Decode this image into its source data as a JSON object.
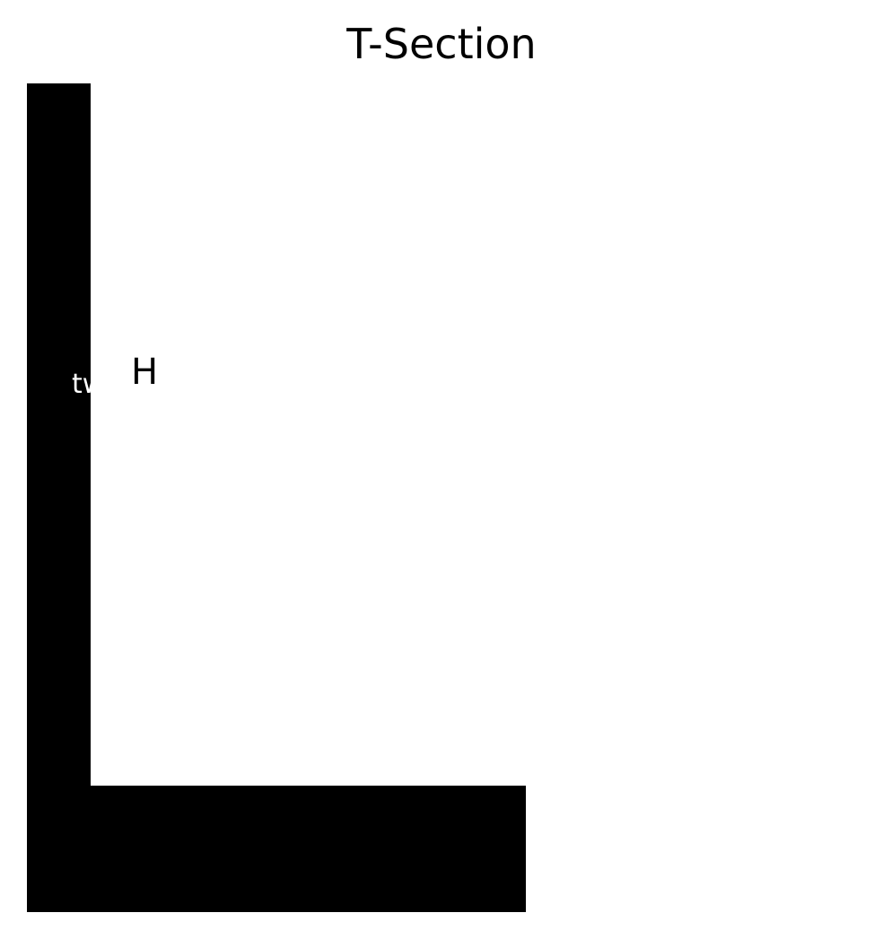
{
  "diagram": {
    "title": "T-Section",
    "colors": {
      "section_fill": "#000000",
      "background": "#ffffff",
      "tw_label": "#ffffff",
      "h_label": "#000000"
    },
    "labels": {
      "web_thickness": "tw",
      "height": "H"
    }
  }
}
